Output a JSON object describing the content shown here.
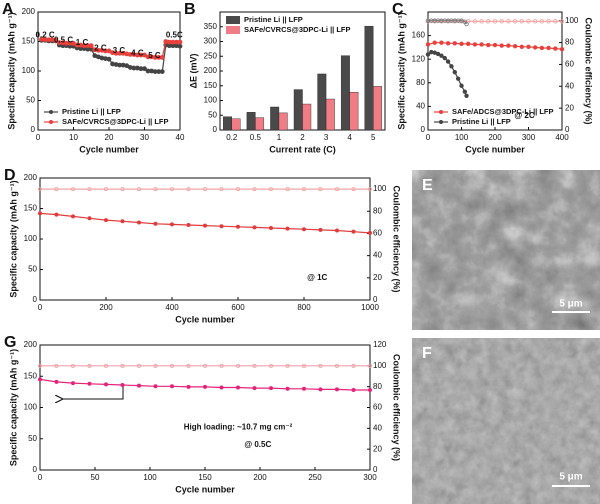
{
  "chart_data": [
    {
      "panel": "A",
      "type": "line",
      "xlabel": "Cycle number",
      "ylabel": "Specific capacity (mAh g⁻¹)",
      "xlim": [
        0,
        40
      ],
      "xticks": [
        0,
        10,
        20,
        30,
        40
      ],
      "ylim": [
        0,
        200
      ],
      "yticks": [
        0,
        50,
        100,
        150,
        200
      ],
      "annotations": [
        "0.2 C",
        "0.5 C",
        "1 C",
        "2 C",
        "3 C",
        "4 C",
        "5 C",
        "0.5C"
      ],
      "legend": "lower left",
      "series": [
        {
          "name": "Pristine Li || LFP",
          "color": "#444444",
          "x": [
            1,
            2,
            3,
            4,
            5,
            6,
            7,
            8,
            9,
            10,
            11,
            12,
            13,
            14,
            15,
            16,
            17,
            18,
            19,
            20,
            21,
            22,
            23,
            24,
            25,
            26,
            27,
            28,
            29,
            30,
            31,
            32,
            33,
            34,
            35,
            36,
            37,
            38,
            39,
            40
          ],
          "values": [
            152,
            152,
            151,
            151,
            151,
            144,
            143,
            143,
            142,
            142,
            139,
            138,
            138,
            137,
            137,
            126,
            124,
            122,
            121,
            120,
            112,
            111,
            110,
            110,
            109,
            106,
            105,
            105,
            104,
            104,
            100,
            100,
            99,
            99,
            99,
            144,
            143,
            143,
            143,
            142
          ]
        },
        {
          "name": "SAFe/CVRCS@3DPC-Li || LFP",
          "color": "#e8413c",
          "x": [
            1,
            2,
            3,
            4,
            5,
            6,
            7,
            8,
            9,
            10,
            11,
            12,
            13,
            14,
            15,
            16,
            17,
            18,
            19,
            20,
            21,
            22,
            23,
            24,
            25,
            26,
            27,
            28,
            29,
            30,
            31,
            32,
            33,
            34,
            35,
            36,
            37,
            38,
            39,
            40
          ],
          "values": [
            154,
            153,
            153,
            153,
            152,
            148,
            148,
            147,
            147,
            147,
            144,
            144,
            143,
            143,
            143,
            136,
            135,
            135,
            134,
            134,
            131,
            130,
            130,
            130,
            129,
            128,
            128,
            127,
            127,
            127,
            124,
            124,
            123,
            123,
            123,
            150,
            149,
            149,
            149,
            149
          ]
        }
      ]
    },
    {
      "panel": "B",
      "type": "bar",
      "xlabel": "Current rate (C)",
      "ylabel": "ΔE (mV)",
      "categories": [
        "0.2",
        "0.5",
        "1",
        "2",
        "3",
        "4",
        "5"
      ],
      "ylim": [
        0,
        400
      ],
      "yticks": [
        0,
        50,
        100,
        150,
        200,
        250,
        300,
        350
      ],
      "legend": "upper left",
      "series": [
        {
          "name": "Pristine Li || LFP",
          "color": "#4a4a4a",
          "values": [
            45,
            60,
            78,
            137,
            190,
            252,
            352
          ]
        },
        {
          "name": "SAFe/CVRCS@3DPC-Li || LFP",
          "color": "#f07c86",
          "values": [
            38,
            42,
            58,
            88,
            105,
            128,
            148
          ]
        }
      ]
    },
    {
      "panel": "C",
      "type": "line",
      "xlabel": "Cycle number",
      "ylabel": "Specific capacity (mAh g⁻¹)",
      "y2label": "Coulombic efficiency (%)",
      "xlim": [
        0,
        400
      ],
      "xticks": [
        0,
        100,
        200,
        300,
        400
      ],
      "ylim": [
        0,
        200
      ],
      "yticks": [
        0,
        40,
        80,
        120,
        160
      ],
      "y2lim": [
        0,
        108
      ],
      "y2ticks": [
        0,
        20,
        40,
        60,
        80,
        100
      ],
      "annotations": [
        "@ 2C"
      ],
      "legend": "lower left",
      "series": [
        {
          "name": "SAFe/ADCS@3DPC-Li || LFP",
          "color": "#e8413c",
          "x": [
            0,
            20,
            40,
            60,
            80,
            100,
            120,
            140,
            160,
            180,
            200,
            220,
            240,
            260,
            280,
            300,
            320,
            340,
            360,
            380,
            400
          ],
          "values": [
            145,
            148,
            148,
            147,
            147,
            146,
            146,
            145,
            145,
            144,
            144,
            143,
            143,
            142,
            141,
            141,
            140,
            139,
            139,
            138,
            137
          ]
        },
        {
          "name": "Pristine Li || LFP",
          "color": "#444444",
          "x": [
            0,
            10,
            20,
            30,
            40,
            50,
            60,
            70,
            80,
            90,
            100,
            110,
            115
          ],
          "values": [
            128,
            132,
            131,
            129,
            126,
            122,
            116,
            108,
            98,
            87,
            75,
            65,
            58
          ]
        },
        {
          "axis": "y2",
          "color": "#f4a0a0",
          "x": [
            0,
            20,
            40,
            60,
            80,
            100,
            120,
            140,
            160,
            180,
            200,
            220,
            240,
            260,
            280,
            300,
            320,
            340,
            360,
            380,
            400
          ],
          "values": [
            99.5,
            99.5,
            99.5,
            99.5,
            99.5,
            99.5,
            99.5,
            99.5,
            99.5,
            99.5,
            99.5,
            99.5,
            99.5,
            99.5,
            99.5,
            99.5,
            99.5,
            99.5,
            99.5,
            99.5,
            99.5
          ]
        },
        {
          "axis": "y2",
          "color": "#777777",
          "x": [
            0,
            10,
            20,
            30,
            40,
            50,
            60,
            70,
            80,
            90,
            100,
            110,
            115
          ],
          "values": [
            100,
            100,
            100,
            100,
            100,
            100,
            100,
            100,
            100,
            100,
            100,
            99,
            97
          ]
        }
      ]
    },
    {
      "panel": "D",
      "type": "line",
      "xlabel": "Cycle number",
      "ylabel": "Specific capacity (mAh g⁻¹)",
      "y2label": "Coulombic efficiency (%)",
      "xlim": [
        0,
        1000
      ],
      "xticks": [
        0,
        200,
        400,
        600,
        800,
        1000
      ],
      "ylim": [
        0,
        200
      ],
      "yticks": [
        0,
        50,
        100,
        150,
        200
      ],
      "y2lim": [
        0,
        110
      ],
      "y2ticks": [
        0,
        20,
        40,
        60,
        80,
        100
      ],
      "annotations": [
        "@ 1C"
      ],
      "series": [
        {
          "color": "#e03a3a",
          "x": [
            0,
            50,
            100,
            150,
            200,
            250,
            300,
            350,
            400,
            450,
            500,
            550,
            600,
            650,
            700,
            750,
            800,
            850,
            900,
            950,
            1000
          ],
          "values": [
            142,
            140,
            137,
            134,
            131,
            129,
            127,
            125,
            124,
            123,
            122,
            121,
            120,
            119,
            118,
            117,
            116,
            115,
            114,
            112,
            110
          ]
        },
        {
          "axis": "y2",
          "color": "#f2a5a5",
          "x": [
            0,
            50,
            100,
            150,
            200,
            250,
            300,
            350,
            400,
            450,
            500,
            550,
            600,
            650,
            700,
            750,
            800,
            850,
            900,
            950,
            1000
          ],
          "values": [
            100,
            100,
            100,
            100,
            100,
            100,
            100,
            100,
            100,
            100,
            100,
            100,
            100,
            100,
            100,
            100,
            100,
            100,
            100,
            100,
            100
          ]
        }
      ]
    },
    {
      "panel": "G",
      "type": "line",
      "xlabel": "Cycle number",
      "ylabel": "Specific capacity (mAh g⁻¹)",
      "y2label": "Coulombic efficiency (%)",
      "xlim": [
        0,
        300
      ],
      "xticks": [
        0,
        50,
        100,
        150,
        200,
        250,
        300
      ],
      "ylim": [
        0,
        200
      ],
      "yticks": [
        0,
        50,
        100,
        150,
        200
      ],
      "y2lim": [
        0,
        120
      ],
      "y2ticks": [
        0,
        20,
        40,
        60,
        80,
        100,
        120
      ],
      "annotations": [
        "High loading: ~10.7 mg cm⁻²",
        "@ 0.5C"
      ],
      "series": [
        {
          "color": "#e5237a",
          "x": [
            0,
            15,
            30,
            45,
            60,
            75,
            90,
            105,
            120,
            135,
            150,
            165,
            180,
            195,
            210,
            225,
            240,
            255,
            270,
            285,
            300
          ],
          "values": [
            145,
            141,
            139,
            138,
            137,
            136,
            135,
            134,
            134,
            133,
            133,
            132,
            132,
            131,
            131,
            130,
            130,
            129,
            129,
            128,
            128
          ]
        },
        {
          "axis": "y2",
          "color": "#f0a0a8",
          "x": [
            0,
            15,
            30,
            45,
            60,
            75,
            90,
            105,
            120,
            135,
            150,
            165,
            180,
            195,
            210,
            225,
            240,
            255,
            270,
            285,
            300
          ],
          "values": [
            100,
            100,
            100,
            100,
            100,
            100,
            100,
            100,
            100,
            100,
            100,
            100,
            100,
            100,
            100,
            100,
            100,
            100,
            100,
            100,
            100
          ]
        }
      ]
    }
  ],
  "images": [
    {
      "panel": "E",
      "scale_bar": "5 μm"
    },
    {
      "panel": "F",
      "scale_bar": "5 μm"
    }
  ]
}
